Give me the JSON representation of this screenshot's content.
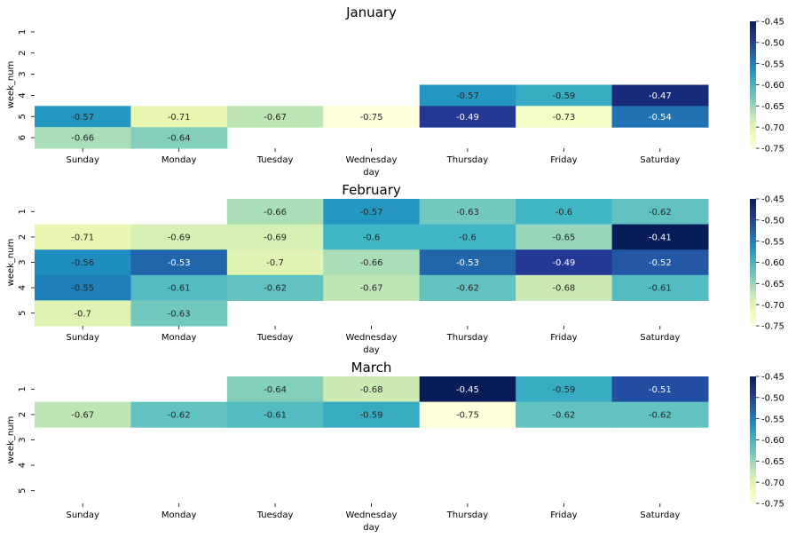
{
  "colors": {
    "colormap": "YlGnBu",
    "stops": [
      "#ffffd9",
      "#edf8b1",
      "#c7e9b4",
      "#7fcdbb",
      "#41b6c4",
      "#1d91c0",
      "#225ea8",
      "#253494",
      "#081d58"
    ],
    "dark_text": "#262626",
    "light_text": "#ffffff"
  },
  "chart_data": [
    {
      "type": "heatmap",
      "title": "January",
      "xlabel": "day",
      "ylabel": "week_num",
      "x_categories": [
        "Sunday",
        "Monday",
        "Tuesday",
        "Wednesday",
        "Thursday",
        "Friday",
        "Saturday"
      ],
      "y_categories": [
        "1",
        "2",
        "3",
        "4",
        "5",
        "6"
      ],
      "values": [
        [
          null,
          null,
          null,
          null,
          null,
          null,
          null
        ],
        [
          null,
          null,
          null,
          null,
          null,
          null,
          null
        ],
        [
          null,
          null,
          null,
          null,
          null,
          null,
          null
        ],
        [
          null,
          null,
          null,
          null,
          -0.57,
          -0.59,
          -0.47
        ],
        [
          -0.57,
          -0.71,
          -0.67,
          -0.75,
          -0.49,
          -0.73,
          -0.54
        ],
        [
          -0.66,
          -0.64,
          null,
          null,
          null,
          null,
          null
        ]
      ],
      "colorbar": {
        "vmin": -0.75,
        "vmax": -0.45,
        "ticks": [
          "-0.45",
          "-0.50",
          "-0.55",
          "-0.60",
          "-0.65",
          "-0.70",
          "-0.75"
        ]
      }
    },
    {
      "type": "heatmap",
      "title": "February",
      "xlabel": "day",
      "ylabel": "week_num",
      "x_categories": [
        "Sunday",
        "Monday",
        "Tuesday",
        "Wednesday",
        "Thursday",
        "Friday",
        "Saturday"
      ],
      "y_categories": [
        "1",
        "2",
        "3",
        "4",
        "5"
      ],
      "values": [
        [
          null,
          null,
          -0.66,
          -0.57,
          -0.63,
          -0.6,
          -0.62
        ],
        [
          -0.71,
          -0.69,
          -0.69,
          -0.6,
          -0.6,
          -0.65,
          -0.41
        ],
        [
          -0.56,
          -0.53,
          -0.7,
          -0.66,
          -0.53,
          -0.49,
          -0.52
        ],
        [
          -0.55,
          -0.61,
          -0.62,
          -0.67,
          -0.62,
          -0.68,
          -0.61
        ],
        [
          -0.7,
          -0.63,
          null,
          null,
          null,
          null,
          null
        ]
      ],
      "colorbar": {
        "vmin": -0.75,
        "vmax": -0.45,
        "ticks": [
          "-0.45",
          "-0.50",
          "-0.55",
          "-0.60",
          "-0.65",
          "-0.70",
          "-0.75"
        ]
      }
    },
    {
      "type": "heatmap",
      "title": "March",
      "xlabel": "day",
      "ylabel": "week_num",
      "x_categories": [
        "Sunday",
        "Monday",
        "Tuesday",
        "Wednesday",
        "Thursday",
        "Friday",
        "Saturday"
      ],
      "y_categories": [
        "1",
        "2",
        "3",
        "4",
        "5"
      ],
      "values": [
        [
          null,
          null,
          -0.64,
          -0.68,
          -0.45,
          -0.59,
          -0.51
        ],
        [
          -0.67,
          -0.62,
          -0.61,
          -0.59,
          -0.75,
          -0.62,
          -0.62
        ],
        [
          null,
          null,
          null,
          null,
          null,
          null,
          null
        ],
        [
          null,
          null,
          null,
          null,
          null,
          null,
          null
        ],
        [
          null,
          null,
          null,
          null,
          null,
          null,
          null
        ]
      ],
      "colorbar": {
        "vmin": -0.75,
        "vmax": -0.45,
        "ticks": [
          "-0.45",
          "-0.50",
          "-0.55",
          "-0.60",
          "-0.65",
          "-0.70",
          "-0.75"
        ]
      }
    }
  ]
}
